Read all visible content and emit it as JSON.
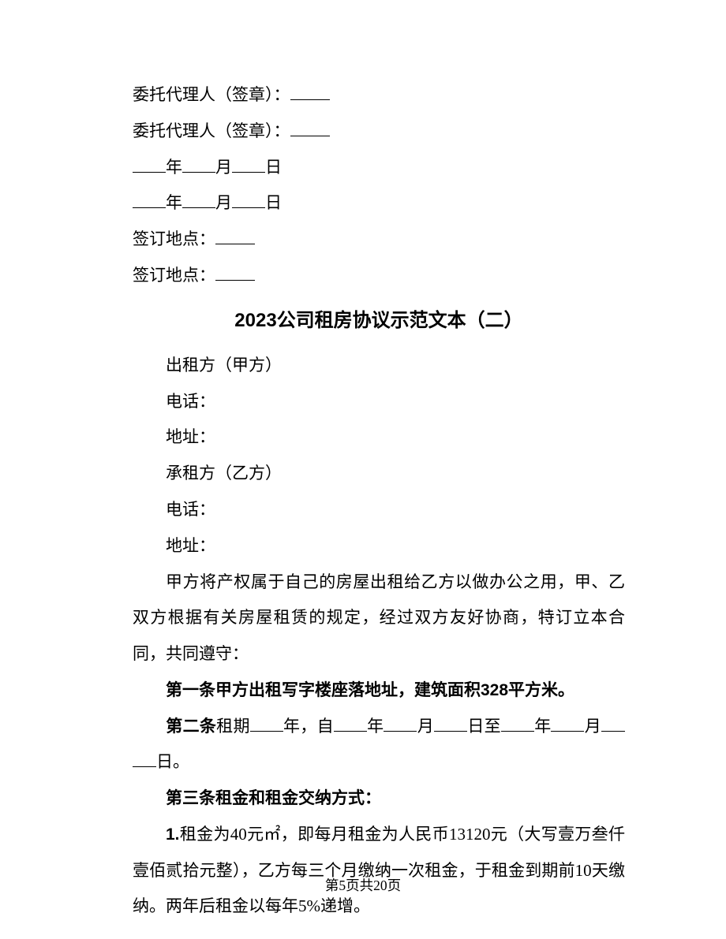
{
  "sig1": "委托代理人（签章）：",
  "sig2": "委托代理人（签章）：",
  "year_label": "年",
  "month_label": "月",
  "day_label": "日",
  "loc1": "签订地点：",
  "loc2": "签订地点：",
  "title": "2023公司租房协议示范文本（二）",
  "lessor": "出租方（甲方）",
  "phone": "电话：",
  "addr": "地址：",
  "lessee": "承租方（乙方）",
  "intro": "甲方将产权属于自己的房屋出租给乙方以做办公之用，甲、乙双方根据有关房屋租赁的规定，经过双方友好协商，特订立本合同，共同遵守：",
  "clause1": "第一条甲方出租写字楼座落地址，建筑面积328平方米。",
  "clause2_prefix": "第二条",
  "clause2_a": "租期",
  "clause2_b": "年，自",
  "clause2_c": "年",
  "clause2_d": "月",
  "clause2_e": "日至",
  "clause2_f": "年",
  "clause2_g": "月",
  "clause2_end": "日。",
  "clause3": "第三条租金和租金交纳方式：",
  "para1_prefix": "1.",
  "para1": "租金为40元㎡，即每月租金为人民币13120元（大写壹万叁仟壹佰贰拾元整），乙方每三个月缴纳一次租金，于租金到期前10天缴纳。两年后租金以每年5%递增。",
  "footer": "第5页共20页"
}
